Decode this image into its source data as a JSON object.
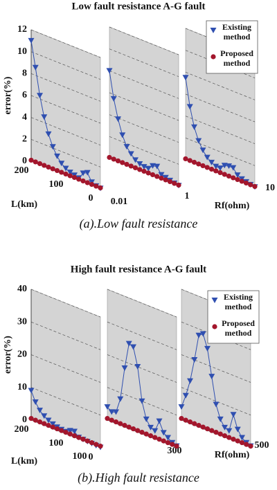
{
  "chart_data": [
    {
      "type": "line3d",
      "title": "Low fault resistance A-G fault",
      "caption": "(a).Low fault resistance",
      "ylabel": "error(%)",
      "xlabel": "L(km)",
      "zlabel": "Rf(ohm)",
      "ylim": [
        0,
        12
      ],
      "yticks": [
        0,
        2,
        4,
        6,
        8,
        10,
        12
      ],
      "xlim": [
        200,
        0
      ],
      "xticks": [
        200,
        100,
        0
      ],
      "zticks": [
        0.01,
        1,
        10
      ],
      "grid": true,
      "x": [
        200,
        187.5,
        175,
        162.5,
        150,
        137.5,
        125,
        112.5,
        100,
        87.5,
        75,
        62.5,
        50,
        37.5,
        25,
        12.5,
        0
      ],
      "series": [
        {
          "name": "Existing method",
          "color": "#2f4fb0",
          "marker": "triangle",
          "values": [
            [
              11,
              8.7,
              6.3,
              4.5,
              3.1,
              2.1,
              1.4,
              0.9,
              0.6,
              0.4,
              0.3,
              0.2,
              0.8,
              1,
              0.3,
              0.1,
              0.05
            ],
            [
              8,
              5.6,
              3.9,
              2.6,
              1.7,
              1.2,
              0.8,
              0.6,
              0.5,
              0.5,
              0.9,
              1,
              0.4,
              0.3,
              0.2,
              0.1,
              0.05
            ],
            [
              7.5,
              5,
              3.3,
              2.2,
              1.5,
              1,
              0.7,
              0.5,
              0.5,
              0.9,
              1,
              1,
              0.5,
              0.3,
              0.2,
              0.1,
              0.05
            ]
          ]
        },
        {
          "name": "Proposed method",
          "color": "#a3162c",
          "marker": "circle",
          "values": [
            [
              0.1,
              0.1,
              0.1,
              0.1,
              0.1,
              0.1,
              0.1,
              0.1,
              0.1,
              0.1,
              0.1,
              0.1,
              0.1,
              0.1,
              0.1,
              0.1,
              0.1
            ],
            [
              0.1,
              0.1,
              0.1,
              0.1,
              0.1,
              0.1,
              0.1,
              0.1,
              0.1,
              0.1,
              0.1,
              0.1,
              0.1,
              0.1,
              0.1,
              0.1,
              0.1
            ],
            [
              0.1,
              0.1,
              0.1,
              0.1,
              0.1,
              0.1,
              0.1,
              0.1,
              0.1,
              0.1,
              0.1,
              0.1,
              0.1,
              0.1,
              0.1,
              0.1,
              0.1
            ]
          ]
        }
      ]
    },
    {
      "type": "line3d",
      "title": "High fault resistance A-G fault",
      "caption": "(b).High fault resistance",
      "ylabel": "error(%)",
      "xlabel": "L(km)",
      "zlabel": "Rf(ohm)",
      "ylim": [
        0,
        40
      ],
      "yticks": [
        0,
        10,
        20,
        30,
        40
      ],
      "xlim": [
        200,
        0
      ],
      "xticks": [
        200,
        100,
        0
      ],
      "zticks": [
        100,
        300,
        500
      ],
      "grid": true,
      "x": [
        200,
        187.5,
        175,
        162.5,
        150,
        137.5,
        125,
        112.5,
        100,
        87.5,
        75,
        62.5,
        50,
        37.5,
        25,
        12.5,
        0
      ],
      "series": [
        {
          "name": "Existing method",
          "color": "#2f4fb0",
          "marker": "triangle",
          "values": [
            [
              9,
              6,
              4,
              2.8,
              2,
              1.4,
              1,
              0.8,
              0.7,
              1.5,
              1.8,
              0.5,
              0.4,
              0.3,
              0.2,
              0.1,
              0.1
            ],
            [
              4,
              3,
              3.5,
              8,
              18,
              26,
              25.5,
              20,
              10,
              5,
              3,
              2.5,
              6,
              3,
              2,
              1,
              0.5
            ],
            [
              4,
              8,
              13,
              20,
              28,
              29,
              25,
              17,
              9,
              5,
              3,
              2.5,
              8,
              4,
              2,
              1,
              0.5
            ]
          ]
        },
        {
          "name": "Proposed method",
          "color": "#a3162c",
          "marker": "circle",
          "values": [
            [
              0.5,
              0.5,
              0.5,
              0.5,
              0.5,
              0.5,
              0.5,
              0.5,
              0.5,
              0.5,
              0.5,
              0.5,
              0.5,
              0.5,
              0.5,
              0.5,
              0.5
            ],
            [
              0.5,
              0.5,
              0.5,
              0.5,
              0.5,
              0.5,
              0.5,
              0.5,
              0.5,
              0.5,
              0.5,
              0.5,
              0.5,
              0.5,
              0.5,
              0.5,
              0.5
            ],
            [
              0.5,
              0.5,
              0.5,
              0.5,
              0.5,
              0.5,
              0.5,
              0.5,
              0.5,
              0.5,
              0.5,
              0.5,
              0.5,
              0.5,
              0.5,
              0.5,
              0.5
            ]
          ]
        }
      ]
    }
  ]
}
